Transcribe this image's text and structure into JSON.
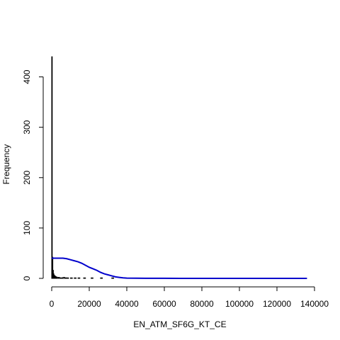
{
  "chart_data": {
    "type": "histogram",
    "xlabel": "EN_ATM_SF6G_KT_CE",
    "ylabel": "Frequency",
    "xlim": [
      0,
      140000
    ],
    "ylim": [
      0,
      450
    ],
    "x_ticks": [
      0,
      20000,
      40000,
      60000,
      80000,
      100000,
      120000,
      140000
    ],
    "y_ticks": [
      0,
      100,
      200,
      300,
      400
    ],
    "x_tick_labels": [
      "0",
      "20000",
      "40000",
      "60000",
      "80000",
      "100000",
      "120000",
      "140000"
    ],
    "y_tick_labels": [
      "0",
      "100",
      "200",
      "300",
      "400"
    ],
    "bars": [
      {
        "x0": 0,
        "x1": 300,
        "count": 440
      },
      {
        "x0": 300,
        "x1": 600,
        "count": 42
      },
      {
        "x0": 600,
        "x1": 900,
        "count": 16
      },
      {
        "x0": 900,
        "x1": 1200,
        "count": 9
      },
      {
        "x0": 1200,
        "x1": 1500,
        "count": 6
      },
      {
        "x0": 1500,
        "x1": 1800,
        "count": 5
      },
      {
        "x0": 1800,
        "x1": 2100,
        "count": 4
      },
      {
        "x0": 2100,
        "x1": 2400,
        "count": 3
      },
      {
        "x0": 2400,
        "x1": 2700,
        "count": 3
      },
      {
        "x0": 2700,
        "x1": 3000,
        "count": 2
      },
      {
        "x0": 3000,
        "x1": 3600,
        "count": 2
      },
      {
        "x0": 3600,
        "x1": 4200,
        "count": 2
      },
      {
        "x0": 4200,
        "x1": 5000,
        "count": 1
      },
      {
        "x0": 5000,
        "x1": 6000,
        "count": 1
      },
      {
        "x0": 6000,
        "x1": 7000,
        "count": 2
      },
      {
        "x0": 7000,
        "x1": 8000,
        "count": 1
      },
      {
        "x0": 8000,
        "x1": 9000,
        "count": 1
      },
      {
        "x0": 10000,
        "x1": 11000,
        "count": 1
      },
      {
        "x0": 12000,
        "x1": 13000,
        "count": 1
      },
      {
        "x0": 14000,
        "x1": 15000,
        "count": 1
      },
      {
        "x0": 17000,
        "x1": 18000,
        "count": 1
      },
      {
        "x0": 21000,
        "x1": 22000,
        "count": 1
      },
      {
        "x0": 26000,
        "x1": 27000,
        "count": 1
      },
      {
        "x0": 32000,
        "x1": 33000,
        "count": 1
      }
    ],
    "density_line": {
      "color": "#0000CC",
      "points": [
        [
          0,
          40
        ],
        [
          2000,
          40
        ],
        [
          4000,
          40
        ],
        [
          6000,
          40
        ],
        [
          8000,
          39
        ],
        [
          10000,
          37
        ],
        [
          12000,
          35
        ],
        [
          14000,
          33
        ],
        [
          16000,
          30
        ],
        [
          18000,
          26
        ],
        [
          20000,
          22
        ],
        [
          22000,
          19
        ],
        [
          24000,
          16
        ],
        [
          26000,
          12
        ],
        [
          28000,
          9
        ],
        [
          30000,
          7
        ],
        [
          32000,
          5
        ],
        [
          34000,
          3
        ],
        [
          36000,
          2
        ],
        [
          38000,
          1
        ],
        [
          40000,
          0.5
        ],
        [
          45000,
          0.3
        ],
        [
          50000,
          0.2
        ],
        [
          60000,
          0.1
        ],
        [
          80000,
          0.05
        ],
        [
          100000,
          0.03
        ],
        [
          120000,
          0.02
        ],
        [
          136000,
          0.02
        ]
      ]
    },
    "grid": false,
    "legend": "none"
  }
}
